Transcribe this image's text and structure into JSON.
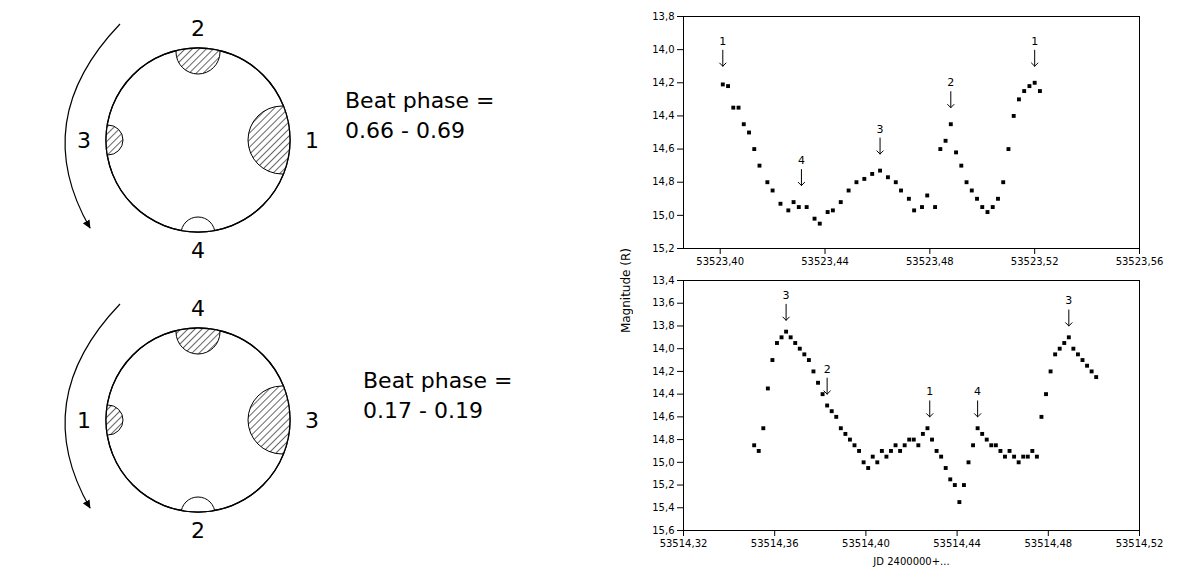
{
  "diagrams": [
    {
      "labels": {
        "top": "2",
        "right": "1",
        "bottom": "4",
        "left": "3"
      },
      "caption": [
        "Beat phase =",
        "0.66 - 0.69"
      ]
    },
    {
      "labels": {
        "top": "4",
        "right": "3",
        "bottom": "2",
        "left": "1"
      },
      "caption": [
        "Beat phase =",
        "0.17 - 0.19"
      ]
    }
  ],
  "y_label": "Magnitude (R)",
  "chart_data": [
    {
      "type": "scatter",
      "marker": "square",
      "color": "#000000",
      "x": [
        53523.401,
        53523.403,
        53523.405,
        53523.407,
        53523.409,
        53523.411,
        53523.413,
        53523.415,
        53523.418,
        53523.42,
        53523.423,
        53523.426,
        53523.428,
        53523.43,
        53523.433,
        53523.436,
        53523.438,
        53523.441,
        53523.443,
        53523.446,
        53523.449,
        53523.452,
        53523.455,
        53523.458,
        53523.461,
        53523.464,
        53523.467,
        53523.469,
        53523.472,
        53523.474,
        53523.477,
        53523.479,
        53523.482,
        53523.484,
        53523.486,
        53523.488,
        53523.49,
        53523.492,
        53523.494,
        53523.496,
        53523.498,
        53523.5,
        53523.502,
        53523.504,
        53523.506,
        53523.508,
        53523.51,
        53523.512,
        53523.514,
        53523.516,
        53523.518,
        53523.52,
        53523.522
      ],
      "values": [
        14.21,
        14.22,
        14.35,
        14.35,
        14.45,
        14.5,
        14.6,
        14.7,
        14.8,
        14.85,
        14.93,
        14.97,
        14.92,
        14.95,
        14.95,
        15.02,
        15.05,
        14.98,
        14.97,
        14.92,
        14.85,
        14.8,
        14.78,
        14.75,
        14.73,
        14.77,
        14.8,
        14.85,
        14.9,
        14.97,
        14.95,
        14.88,
        14.95,
        14.6,
        14.55,
        14.45,
        14.62,
        14.7,
        14.8,
        14.85,
        14.9,
        14.95,
        14.98,
        14.95,
        14.9,
        14.8,
        14.6,
        14.4,
        14.3,
        14.25,
        14.22,
        14.2,
        14.25
      ],
      "xlim": [
        53523.386,
        53523.56
      ],
      "xticks": [
        {
          "value": 53523.4,
          "label": "53523,40"
        },
        {
          "value": 53523.44,
          "label": "53523,44"
        },
        {
          "value": 53523.48,
          "label": "53523,48"
        },
        {
          "value": 53523.52,
          "label": "53523,52"
        },
        {
          "value": 53523.56,
          "label": "53523,56"
        }
      ],
      "ylim": [
        15.2,
        13.8
      ],
      "yticks": [
        {
          "value": 13.8,
          "label": "13,8"
        },
        {
          "value": 14.0,
          "label": "14,0"
        },
        {
          "value": 14.2,
          "label": "14,2"
        },
        {
          "value": 14.4,
          "label": "14,4"
        },
        {
          "value": 14.6,
          "label": "14,6"
        },
        {
          "value": 14.8,
          "label": "14,8"
        },
        {
          "value": 15.0,
          "label": "15,0"
        },
        {
          "value": 15.2,
          "label": "15,2"
        }
      ],
      "annotations": [
        {
          "text": "1",
          "x": 53523.401,
          "y": 14.1
        },
        {
          "text": "4",
          "x": 53523.431,
          "y": 14.82
        },
        {
          "text": "3",
          "x": 53523.461,
          "y": 14.63
        },
        {
          "text": "2",
          "x": 53523.488,
          "y": 14.35
        },
        {
          "text": "1",
          "x": 53523.52,
          "y": 14.1
        }
      ]
    },
    {
      "type": "scatter",
      "marker": "square",
      "color": "#000000",
      "x_label": "JD 2400000+...",
      "x": [
        53514.351,
        53514.353,
        53514.355,
        53514.357,
        53514.359,
        53514.361,
        53514.363,
        53514.365,
        53514.367,
        53514.369,
        53514.371,
        53514.373,
        53514.375,
        53514.377,
        53514.379,
        53514.381,
        53514.383,
        53514.385,
        53514.387,
        53514.389,
        53514.391,
        53514.393,
        53514.395,
        53514.397,
        53514.399,
        53514.401,
        53514.403,
        53514.405,
        53514.407,
        53514.409,
        53514.411,
        53514.413,
        53514.415,
        53514.417,
        53514.419,
        53514.421,
        53514.423,
        53514.425,
        53514.427,
        53514.429,
        53514.431,
        53514.433,
        53514.435,
        53514.437,
        53514.439,
        53514.441,
        53514.443,
        53514.445,
        53514.447,
        53514.449,
        53514.451,
        53514.453,
        53514.455,
        53514.457,
        53514.459,
        53514.461,
        53514.463,
        53514.465,
        53514.467,
        53514.469,
        53514.471,
        53514.473,
        53514.475,
        53514.477,
        53514.479,
        53514.481,
        53514.483,
        53514.485,
        53514.487,
        53514.489,
        53514.491,
        53514.493,
        53514.495,
        53514.497,
        53514.499,
        53514.501
      ],
      "values": [
        14.85,
        14.9,
        14.7,
        14.35,
        14.1,
        13.95,
        13.9,
        13.85,
        13.9,
        13.95,
        14.0,
        14.05,
        14.1,
        14.2,
        14.3,
        14.4,
        14.5,
        14.55,
        14.6,
        14.7,
        14.75,
        14.8,
        14.85,
        14.9,
        15.0,
        15.05,
        14.95,
        15.0,
        14.9,
        14.95,
        14.9,
        14.85,
        14.9,
        14.85,
        14.8,
        14.8,
        14.85,
        14.75,
        14.7,
        14.8,
        14.9,
        14.95,
        15.05,
        15.15,
        15.2,
        15.35,
        15.2,
        15.0,
        14.85,
        14.7,
        14.75,
        14.8,
        14.85,
        14.85,
        14.9,
        14.95,
        14.9,
        14.95,
        15.0,
        14.95,
        14.95,
        14.9,
        14.95,
        14.6,
        14.4,
        14.2,
        14.05,
        14.0,
        13.95,
        13.9,
        14.0,
        14.05,
        14.1,
        14.15,
        14.2,
        14.25
      ],
      "xlim": [
        53514.32,
        53514.52
      ],
      "xticks": [
        {
          "value": 53514.32,
          "label": "53514,32"
        },
        {
          "value": 53514.36,
          "label": "53514,36"
        },
        {
          "value": 53514.4,
          "label": "53514,40"
        },
        {
          "value": 53514.44,
          "label": "53514,44"
        },
        {
          "value": 53514.48,
          "label": "53514,48"
        },
        {
          "value": 53514.52,
          "label": "53514,52"
        }
      ],
      "ylim": [
        15.6,
        13.4
      ],
      "yticks": [
        {
          "value": 13.4,
          "label": "13,4"
        },
        {
          "value": 13.6,
          "label": "13,6"
        },
        {
          "value": 13.8,
          "label": "13,8"
        },
        {
          "value": 14.0,
          "label": "14,0"
        },
        {
          "value": 14.2,
          "label": "14,2"
        },
        {
          "value": 14.4,
          "label": "14,4"
        },
        {
          "value": 14.6,
          "label": "14,6"
        },
        {
          "value": 14.8,
          "label": "14,8"
        },
        {
          "value": 15.0,
          "label": "15,0"
        },
        {
          "value": 15.2,
          "label": "15,2"
        },
        {
          "value": 15.4,
          "label": "15,4"
        },
        {
          "value": 15.6,
          "label": "15,6"
        }
      ],
      "annotations": [
        {
          "text": "3",
          "x": 53514.365,
          "y": 13.75
        },
        {
          "text": "2",
          "x": 53514.383,
          "y": 14.4
        },
        {
          "text": "1",
          "x": 53514.428,
          "y": 14.6
        },
        {
          "text": "4",
          "x": 53514.449,
          "y": 14.6
        },
        {
          "text": "3",
          "x": 53514.489,
          "y": 13.8
        }
      ]
    }
  ]
}
